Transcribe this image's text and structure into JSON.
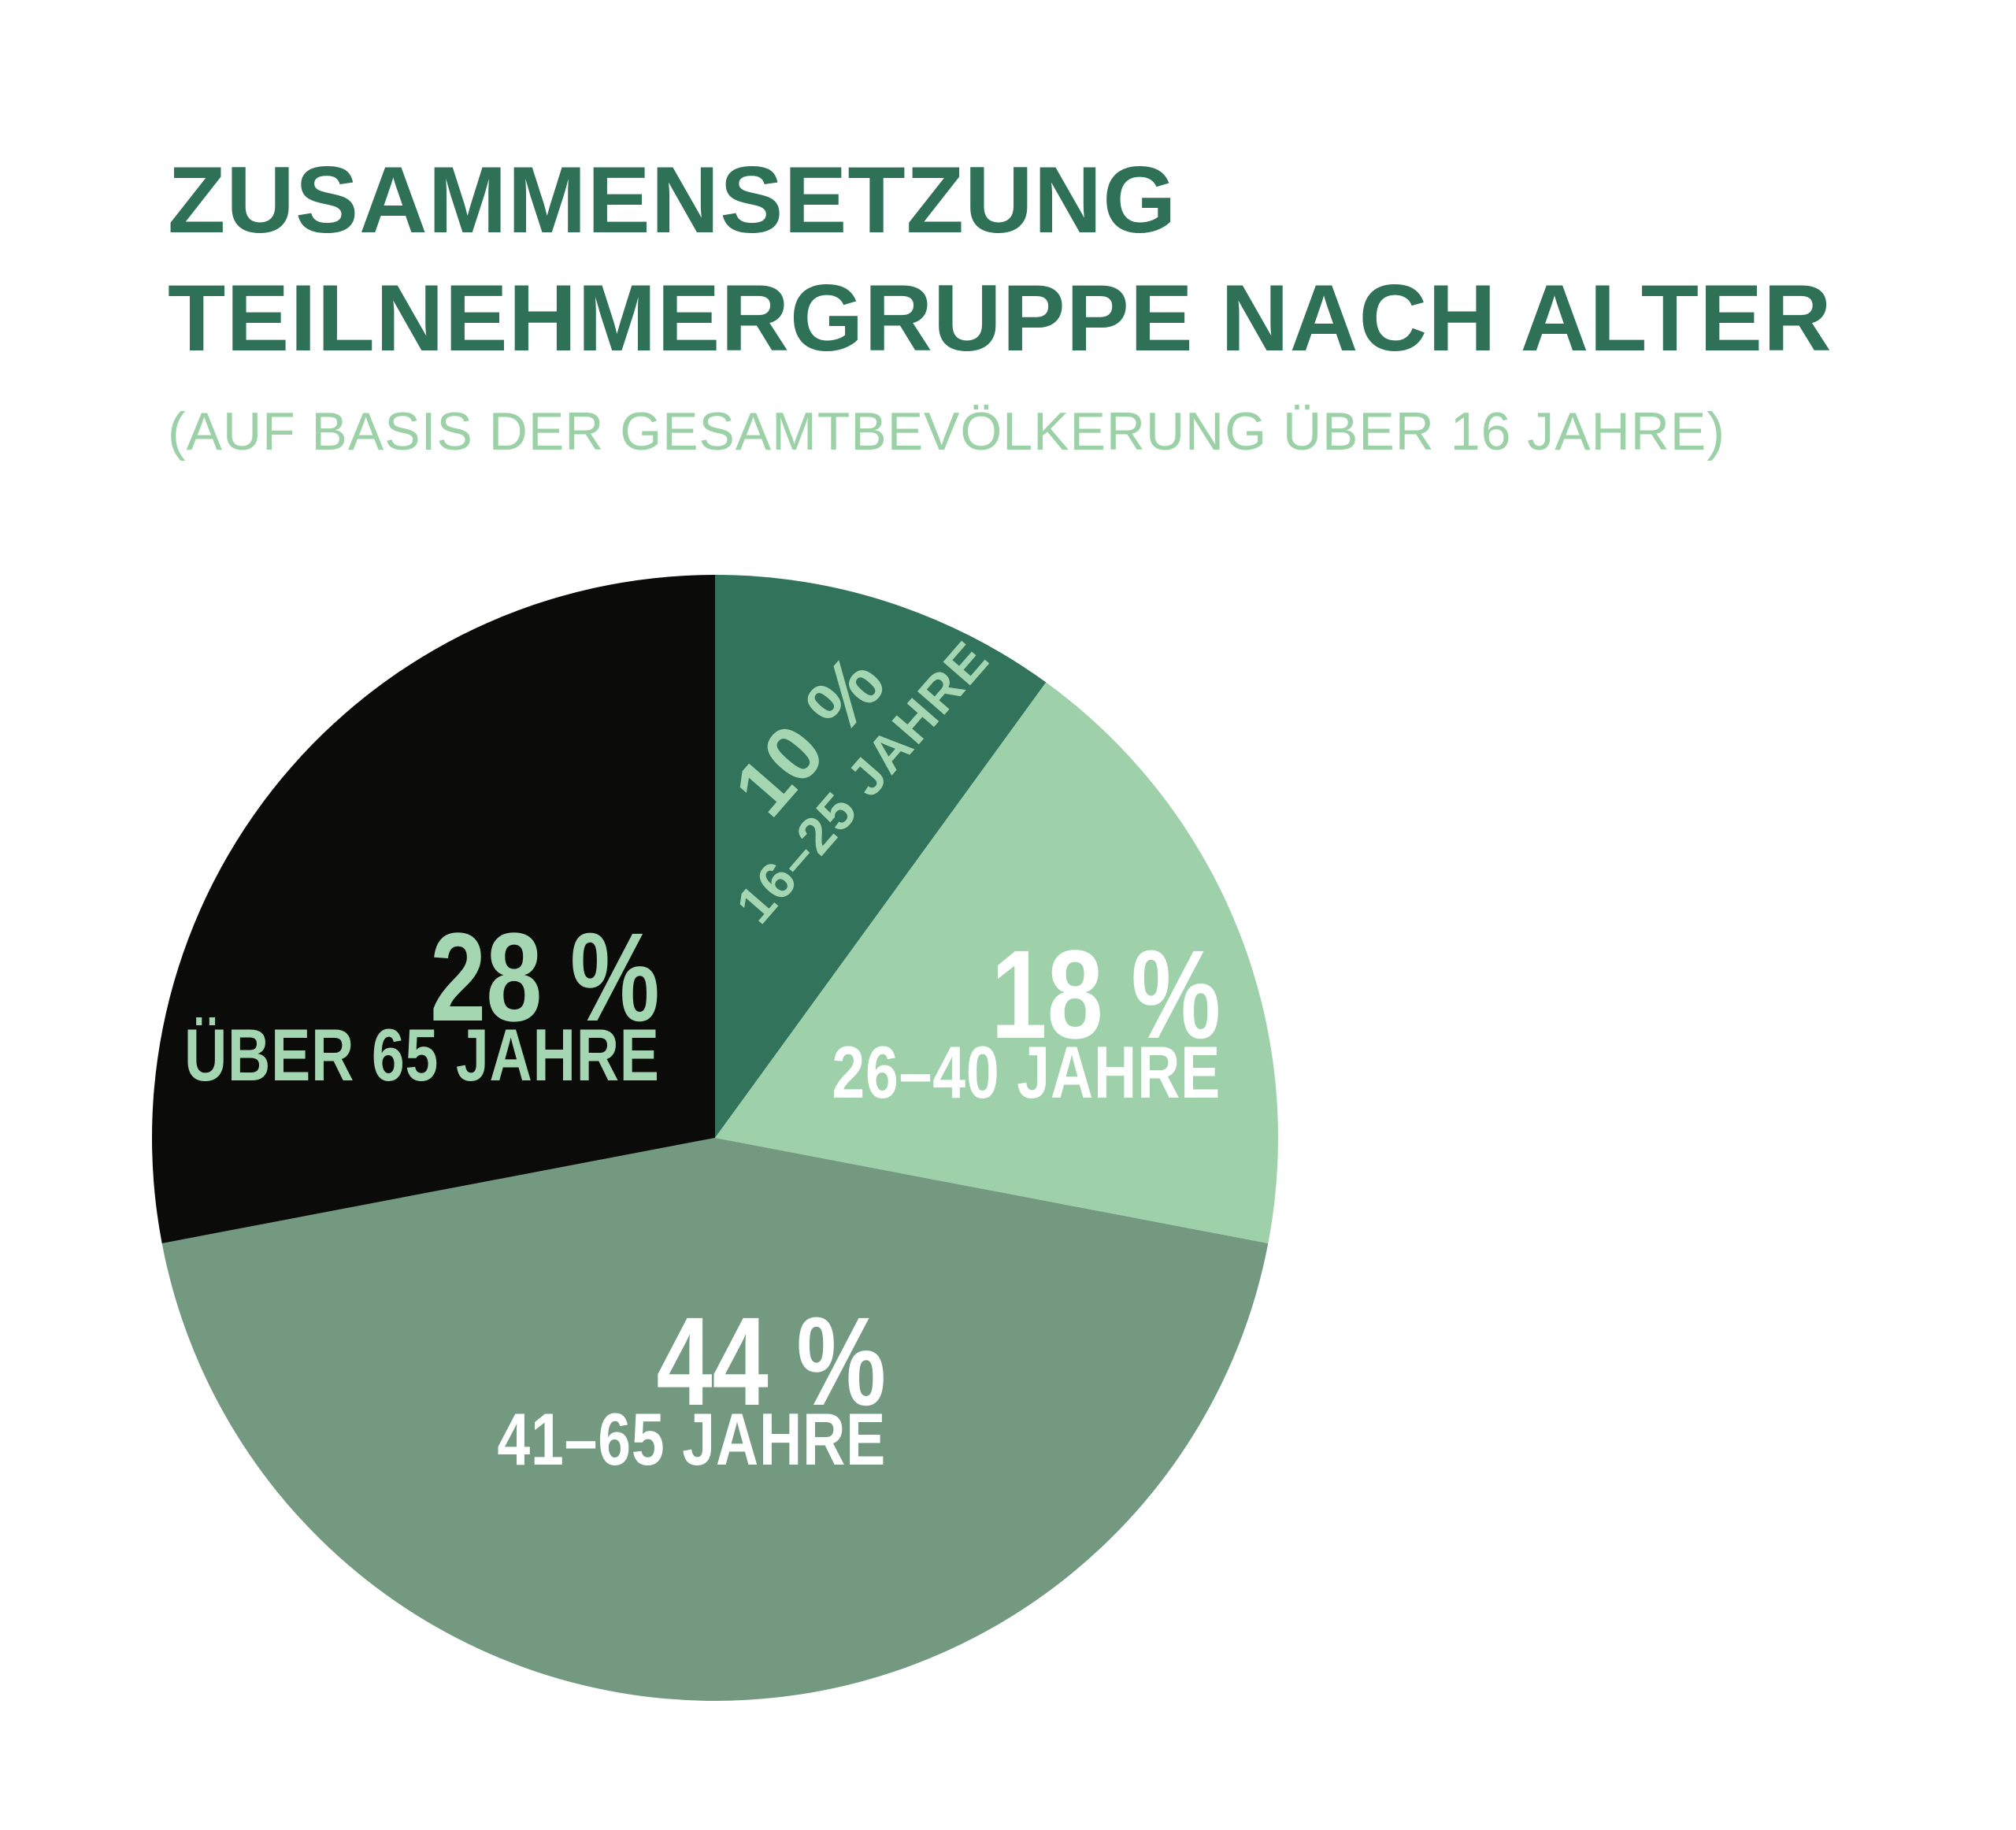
{
  "header": {
    "title_line1": "ZUSAMMENSETZUNG",
    "title_line2": "TEILNEHMERGRUPPE NACH ALTER",
    "subtitle": "(AUF BASIS DER GESAMTBEVÖLKERUNG ÜBER 16 JAHRE)"
  },
  "colors": {
    "background": "#ffffff",
    "title": "#2e7156",
    "subtitle": "#9cd1a7",
    "label_on_dark": "#a5d6b2",
    "label_on_light": "#ffffff"
  },
  "chart_data": {
    "type": "pie",
    "title": "ZUSAMMENSETZUNG TEILNEHMERGRUPPE NACH ALTER",
    "subtitle": "(AUF BASIS DER GESAMTBEVÖLKERUNG ÜBER 16 JAHRE)",
    "unit": "%",
    "start_angle_deg": 0,
    "direction": "clockwise",
    "legend": "none",
    "labels_inside_slices": true,
    "slices": [
      {
        "label": "16–25 JAHRE",
        "value": 10,
        "pct_label": "10 %",
        "color": "#31745b",
        "text_color": "#a5d6b2"
      },
      {
        "label": "26–40 JAHRE",
        "value": 18,
        "pct_label": "18 %",
        "color": "#9ed0aa",
        "text_color": "#ffffff"
      },
      {
        "label": "41–65 JAHRE",
        "value": 44,
        "pct_label": "44 %",
        "color": "#739a80",
        "text_color": "#ffffff"
      },
      {
        "label": "ÜBER 65 JAHRE",
        "value": 28,
        "pct_label": "28 %",
        "color": "#0b0c0a",
        "text_color": "#a5d6b2"
      }
    ]
  }
}
